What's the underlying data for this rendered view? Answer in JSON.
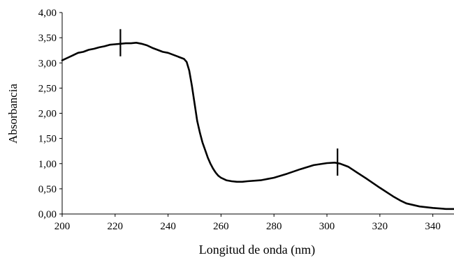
{
  "chart_data": {
    "type": "line",
    "title": "",
    "xlabel": "Longitud de onda (nm)",
    "ylabel": "Absorbancia",
    "xlim": [
      200,
      348
    ],
    "ylim": [
      0,
      4
    ],
    "x_ticks": [
      200,
      220,
      240,
      260,
      280,
      300,
      320,
      340
    ],
    "y_ticks": [
      0,
      0.5,
      1,
      1.5,
      2,
      2.5,
      3,
      3.5,
      4
    ],
    "x_tick_labels": [
      "200",
      "220",
      "240",
      "260",
      "280",
      "300",
      "320",
      "340"
    ],
    "y_tick_labels": [
      "0,00",
      "0,50",
      "1,00",
      "1,50",
      "2,00",
      "2,50",
      "3,00",
      "3,50",
      "4,00"
    ],
    "grid": false,
    "line_color": "#000000",
    "series": [
      {
        "x": [
          200,
          202,
          204,
          206,
          208,
          210,
          212,
          214,
          216,
          218,
          220,
          222,
          224,
          226,
          228,
          230,
          232,
          234,
          236,
          238,
          240,
          242,
          244,
          246,
          247,
          248,
          249,
          250,
          251,
          252,
          253,
          254,
          255,
          256,
          257,
          258,
          259,
          260,
          262,
          264,
          266,
          268,
          270,
          275,
          280,
          285,
          290,
          295,
          300,
          303,
          305,
          308,
          310,
          315,
          320,
          325,
          328,
          330,
          335,
          340,
          345,
          348
        ],
        "y": [
          3.05,
          3.1,
          3.15,
          3.2,
          3.22,
          3.26,
          3.28,
          3.31,
          3.33,
          3.36,
          3.37,
          3.38,
          3.39,
          3.39,
          3.4,
          3.38,
          3.35,
          3.3,
          3.26,
          3.22,
          3.2,
          3.16,
          3.12,
          3.08,
          3.02,
          2.85,
          2.55,
          2.2,
          1.85,
          1.62,
          1.42,
          1.27,
          1.12,
          1.0,
          0.9,
          0.82,
          0.76,
          0.72,
          0.67,
          0.65,
          0.64,
          0.64,
          0.65,
          0.67,
          0.72,
          0.8,
          0.89,
          0.97,
          1.01,
          1.02,
          1.0,
          0.94,
          0.87,
          0.7,
          0.52,
          0.35,
          0.26,
          0.21,
          0.15,
          0.12,
          0.1,
          0.1
        ]
      }
    ],
    "markers": [
      {
        "x": 222,
        "y": 3.38
      },
      {
        "x": 304,
        "y": 1.01
      }
    ]
  }
}
